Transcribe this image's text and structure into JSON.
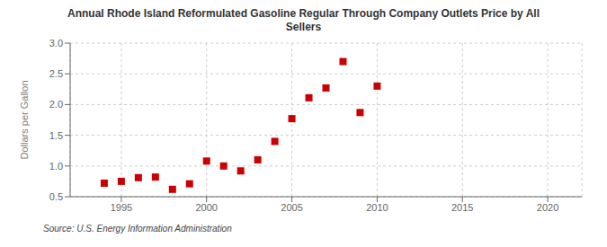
{
  "chart_data": {
    "type": "scatter",
    "title": "Annual Rhode Island Reformulated Gasoline Regular Through Company Outlets Price by All\nSellers",
    "ylabel": "Dollars per Gallon",
    "source": "Source: U.S. Energy Information Administration",
    "x": [
      1994,
      1995,
      1996,
      1997,
      1998,
      1999,
      2000,
      2001,
      2002,
      2003,
      2004,
      2005,
      2006,
      2007,
      2008,
      2009,
      2010
    ],
    "values": [
      0.72,
      0.75,
      0.81,
      0.82,
      0.62,
      0.71,
      1.08,
      1.0,
      0.92,
      1.1,
      1.4,
      1.77,
      2.11,
      2.27,
      2.7,
      1.87,
      2.3
    ],
    "color": "#cc0000",
    "marker": "square",
    "xlim": [
      1992,
      2022
    ],
    "xticks": [
      1995,
      2000,
      2005,
      2010,
      2015,
      2020
    ],
    "ylim": [
      0.5,
      3.0
    ],
    "yticks": [
      0.5,
      {
        "value": 1.0,
        "label": "1.0"
      },
      1.5,
      {
        "value": 2.0,
        "label": "2.0"
      },
      2.5,
      {
        "value": 3.0,
        "label": "3.0"
      }
    ],
    "grid": true
  }
}
